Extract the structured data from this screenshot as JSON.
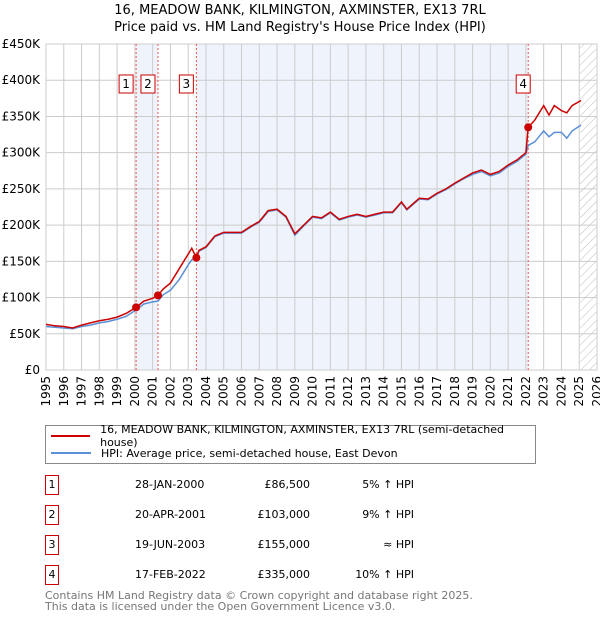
{
  "chart_data": {
    "type": "line",
    "title": "16, MEADOW BANK, KILMINGTON, AXMINSTER, EX13 7RL",
    "subtitle": "Price paid vs. HM Land Registry's House Price Index (HPI)",
    "ylim": [
      0,
      450000
    ],
    "xlim": [
      1995,
      2026
    ],
    "y_ticks": [
      {
        "v": 0,
        "label": "£0"
      },
      {
        "v": 50000,
        "label": "£50K"
      },
      {
        "v": 100000,
        "label": "£100K"
      },
      {
        "v": 150000,
        "label": "£150K"
      },
      {
        "v": 200000,
        "label": "£200K"
      },
      {
        "v": 250000,
        "label": "£250K"
      },
      {
        "v": 300000,
        "label": "£300K"
      },
      {
        "v": 350000,
        "label": "£350K"
      },
      {
        "v": 400000,
        "label": "£400K"
      },
      {
        "v": 450000,
        "label": "£450K"
      }
    ],
    "x_ticks": [
      "1995",
      "1996",
      "1997",
      "1998",
      "1999",
      "2000",
      "2001",
      "2002",
      "2003",
      "2004",
      "2005",
      "2006",
      "2007",
      "2008",
      "2009",
      "2010",
      "2011",
      "2012",
      "2013",
      "2014",
      "2015",
      "2016",
      "2017",
      "2018",
      "2019",
      "2020",
      "2021",
      "2022",
      "2023",
      "2024",
      "2025",
      "2026"
    ],
    "grid": true,
    "shaded_ranges": [
      [
        2000.07,
        2001.3
      ],
      [
        2003.46,
        2022.13
      ]
    ],
    "hatched_from": 2025.05,
    "series": [
      {
        "name": "16, MEADOW BANK, KILMINGTON, AXMINSTER, EX13 7RL (semi-detached house)",
        "color": "#cc0000",
        "x": [
          1995,
          1995.5,
          1996,
          1996.5,
          1997,
          1997.5,
          1998,
          1998.5,
          1999,
          1999.5,
          2000.07,
          2000.5,
          2001,
          2001.3,
          2001.6,
          2002,
          2002.5,
          2003,
          2003.2,
          2003.46,
          2003.6,
          2004,
          2004.5,
          2005,
          2006,
          2006.5,
          2007,
          2007.5,
          2008,
          2008.5,
          2009,
          2009.5,
          2010,
          2010.5,
          2011,
          2011.5,
          2012,
          2012.5,
          2013,
          2013.5,
          2014,
          2014.5,
          2015,
          2015.3,
          2016,
          2016.5,
          2017,
          2017.5,
          2018,
          2018.5,
          2019,
          2019.5,
          2020,
          2020.5,
          2021,
          2021.5,
          2022,
          2022.13,
          2022.5,
          2023,
          2023.3,
          2023.6,
          2024,
          2024.3,
          2024.6,
          2025.1
        ],
        "y": [
          63000,
          61000,
          60000,
          58000,
          62000,
          65000,
          68000,
          70000,
          73000,
          78000,
          86500,
          95000,
          99000,
          103000,
          112000,
          120000,
          140000,
          160000,
          168000,
          155000,
          165000,
          170000,
          185000,
          190000,
          190000,
          198000,
          205000,
          220000,
          222000,
          212000,
          188000,
          200000,
          212000,
          210000,
          218000,
          208000,
          212000,
          215000,
          212000,
          215000,
          218000,
          218000,
          232000,
          222000,
          237000,
          236000,
          244000,
          250000,
          258000,
          265000,
          272000,
          276000,
          270000,
          274000,
          283000,
          290000,
          300000,
          335000,
          345000,
          365000,
          352000,
          365000,
          358000,
          355000,
          365000,
          372000
        ]
      },
      {
        "name": "HPI: Average price, semi-detached house, East Devon",
        "color": "#5b8fd6",
        "x": [
          1995,
          1995.5,
          1996,
          1996.5,
          1997,
          1997.5,
          1998,
          1998.5,
          1999,
          1999.5,
          2000.07,
          2000.5,
          2001,
          2001.3,
          2001.6,
          2002,
          2002.5,
          2003,
          2003.2,
          2003.46,
          2003.6,
          2004,
          2004.5,
          2005,
          2006,
          2006.5,
          2007,
          2007.5,
          2008,
          2008.5,
          2009,
          2009.5,
          2010,
          2010.5,
          2011,
          2011.5,
          2012,
          2012.5,
          2013,
          2013.5,
          2014,
          2014.5,
          2015,
          2015.3,
          2016,
          2016.5,
          2017,
          2017.5,
          2018,
          2018.5,
          2019,
          2019.5,
          2020,
          2020.5,
          2021,
          2021.5,
          2022,
          2022.13,
          2022.5,
          2023,
          2023.3,
          2023.6,
          2024,
          2024.3,
          2024.6,
          2025.1
        ],
        "y": [
          60000,
          59000,
          58000,
          57000,
          60000,
          62000,
          65000,
          67000,
          70000,
          74000,
          83000,
          91000,
          94000,
          95000,
          104000,
          110000,
          125000,
          145000,
          152000,
          155000,
          164000,
          169000,
          184000,
          189000,
          189000,
          197000,
          204000,
          219000,
          221000,
          211000,
          186000,
          199000,
          211000,
          209000,
          217000,
          207000,
          211000,
          214000,
          211000,
          214000,
          217000,
          217000,
          231000,
          221000,
          236000,
          235000,
          243000,
          249000,
          257000,
          264000,
          270000,
          274000,
          268000,
          272000,
          281000,
          288000,
          298000,
          310000,
          315000,
          330000,
          322000,
          328000,
          328000,
          320000,
          330000,
          338000
        ]
      }
    ],
    "sales": [
      {
        "num": "1",
        "x": 2000.07,
        "price": 86500,
        "date": "28-JAN-2000",
        "price_label": "£86,500",
        "hpi": "5% ↑ HPI"
      },
      {
        "num": "2",
        "x": 2001.3,
        "price": 103000,
        "date": "20-APR-2001",
        "price_label": "£103,000",
        "hpi": "9% ↑ HPI"
      },
      {
        "num": "3",
        "x": 2003.46,
        "price": 155000,
        "date": "19-JUN-2003",
        "price_label": "£155,000",
        "hpi": "≈ HPI"
      },
      {
        "num": "4",
        "x": 2022.13,
        "price": 335000,
        "date": "17-FEB-2022",
        "price_label": "£335,000",
        "hpi": "10% ↑ HPI"
      }
    ]
  },
  "footer": {
    "line1": "Contains HM Land Registry data © Crown copyright and database right 2025.",
    "line2": "This data is licensed under the Open Government Licence v3.0."
  }
}
